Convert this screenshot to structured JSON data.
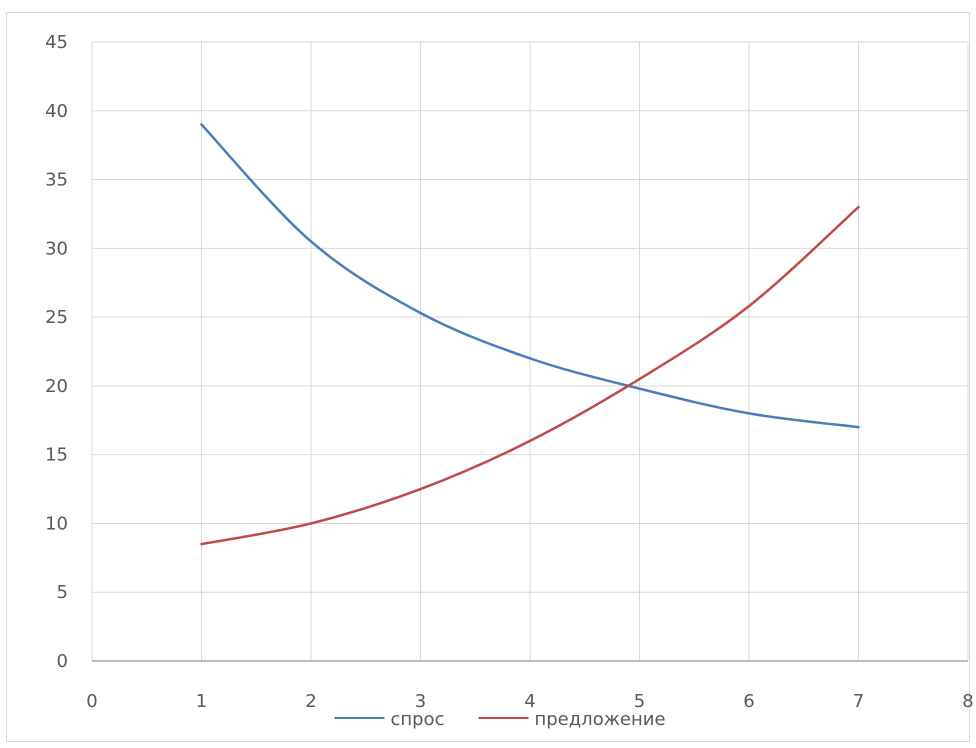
{
  "chart_data": {
    "type": "line",
    "x": [
      1,
      2,
      3,
      4,
      5,
      6,
      7
    ],
    "series": [
      {
        "name": "спрос",
        "color": "#4a7ebb",
        "values": [
          39,
          30.5,
          25.3,
          22,
          19.8,
          18,
          17
        ]
      },
      {
        "name": "предложение",
        "color": "#be4b48",
        "values": [
          8.5,
          10,
          12.5,
          16,
          20.5,
          25.8,
          33
        ]
      }
    ],
    "xlim": [
      0,
      8
    ],
    "ylim": [
      0,
      45
    ],
    "x_ticks": [
      "0",
      "1",
      "2",
      "3",
      "4",
      "5",
      "6",
      "7",
      "8"
    ],
    "y_ticks": [
      "0",
      "5",
      "10",
      "15",
      "20",
      "25",
      "30",
      "35",
      "40",
      "45"
    ],
    "grid": true,
    "legend_position": "bottom",
    "title": "",
    "xlabel": "",
    "ylabel": ""
  }
}
